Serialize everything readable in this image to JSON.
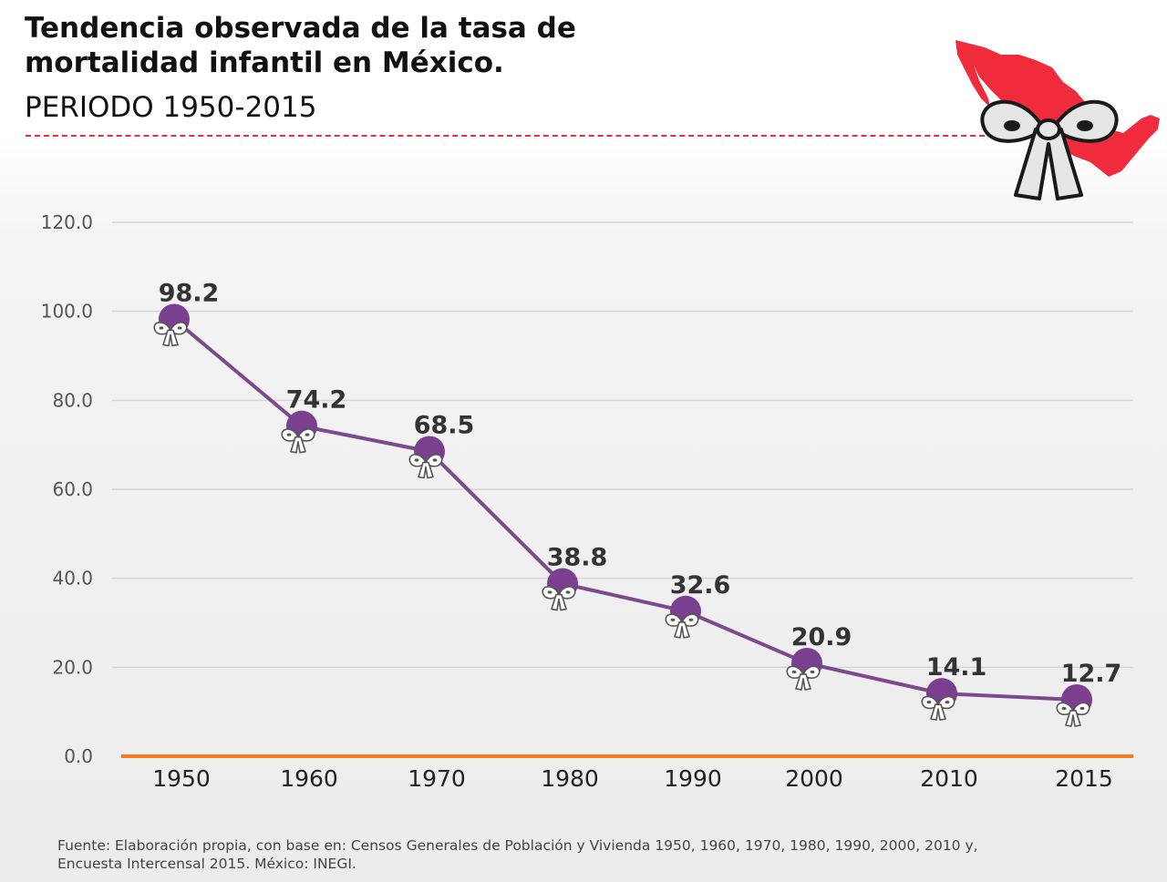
{
  "header": {
    "title_line1": "Tendencia observada de la tasa de",
    "title_line2": "mortalidad infantil en México.",
    "subtitle": "PERIODO 1950-2015"
  },
  "colors": {
    "line": "#7b4a8c",
    "marker": "#7a3f8e",
    "baseline": "#f57a1f",
    "map": "#ef2b3c",
    "dash": "#e53238"
  },
  "icons": {
    "emblem": "mexico-map-ribbon-icon",
    "marker": "ribbon-icon"
  },
  "chart_data": {
    "type": "line",
    "categories": [
      "1950",
      "1960",
      "1970",
      "1980",
      "1990",
      "2000",
      "2010",
      "2015"
    ],
    "series": [
      {
        "values": [
          98.2,
          74.2,
          68.5,
          38.8,
          32.6,
          20.9,
          14.1,
          12.7
        ],
        "labels": [
          "98.2",
          "74.2",
          "68.5",
          "38.8",
          "32.6",
          "20.9",
          "14.1",
          "12.7"
        ]
      }
    ],
    "yticks": [
      "0.0",
      "20.0",
      "40.0",
      "60.0",
      "80.0",
      "100.0",
      "120.0"
    ],
    "ylim": [
      0,
      120
    ],
    "grid": true,
    "legend": "none"
  },
  "footer": {
    "line1": "Fuente: Elaboración propia, con base en: Censos Generales de Población y Vivienda 1950, 1960, 1970, 1980, 1990, 2000, 2010 y,",
    "line2": "Encuesta Intercensal 2015. México: INEGI."
  }
}
